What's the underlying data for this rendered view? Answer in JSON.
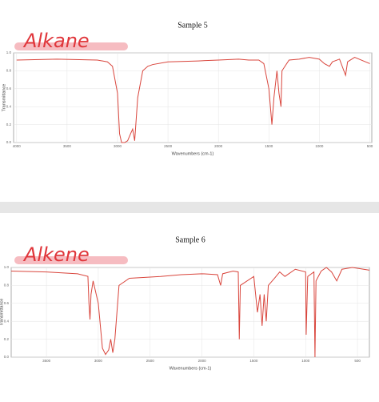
{
  "chart_data": [
    {
      "type": "line",
      "title": "Sample 5",
      "annotation": "Alkane",
      "x_label": "Wavenumbers (cm-1)",
      "y_label": "Transmittance",
      "xlim": [
        4030,
        480
      ],
      "xticks": [
        4000,
        3500,
        3000,
        2500,
        2000,
        1500,
        1000,
        500
      ],
      "ylim": [
        0,
        1
      ],
      "yticks": [
        {
          "value": 0,
          "label": "0.0"
        },
        0.2,
        0.4,
        0.6,
        0.8,
        {
          "value": 1,
          "label": "1.0"
        }
      ],
      "grid": true,
      "color": "#d9453c",
      "x": [
        4000,
        3600,
        3200,
        3100,
        3050,
        3000,
        2980,
        2960,
        2930,
        2900,
        2870,
        2850,
        2830,
        2800,
        2750,
        2700,
        2650,
        2500,
        2200,
        2000,
        1800,
        1700,
        1600,
        1550,
        1500,
        1470,
        1450,
        1420,
        1400,
        1380,
        1370,
        1300,
        1200,
        1100,
        1000,
        950,
        900,
        870,
        800,
        740,
        720,
        650,
        500
      ],
      "values": [
        0.92,
        0.93,
        0.92,
        0.9,
        0.85,
        0.55,
        0.1,
        0.0,
        0.0,
        0.02,
        0.1,
        0.15,
        0.02,
        0.5,
        0.8,
        0.85,
        0.87,
        0.9,
        0.91,
        0.92,
        0.93,
        0.92,
        0.92,
        0.88,
        0.6,
        0.2,
        0.5,
        0.8,
        0.55,
        0.4,
        0.8,
        0.92,
        0.93,
        0.95,
        0.93,
        0.88,
        0.85,
        0.9,
        0.93,
        0.75,
        0.9,
        0.95,
        0.88
      ]
    },
    {
      "type": "line",
      "title": "Sample 6",
      "annotation": "Alkene",
      "x_label": "Wavenumbers (cm-1)",
      "y_label": "Transmittance",
      "xlim": [
        3840,
        385
      ],
      "xticks": [
        3500,
        3000,
        2500,
        2000,
        1500,
        1000,
        500
      ],
      "ylim": [
        0,
        1
      ],
      "yticks": [
        {
          "value": 0,
          "label": "0.0"
        },
        0.2,
        0.4,
        0.6,
        0.8,
        {
          "value": 1,
          "label": "1.0"
        }
      ],
      "grid": true,
      "color": "#d9453c",
      "x": [
        3840,
        3500,
        3200,
        3100,
        3090,
        3080,
        3070,
        3050,
        3000,
        2960,
        2930,
        2900,
        2880,
        2860,
        2840,
        2800,
        2700,
        2400,
        2200,
        2000,
        1850,
        1820,
        1800,
        1700,
        1650,
        1640,
        1630,
        1500,
        1465,
        1440,
        1420,
        1400,
        1380,
        1360,
        1300,
        1250,
        1200,
        1100,
        1000,
        995,
        980,
        920,
        910,
        900,
        850,
        800,
        750,
        700,
        650,
        550,
        385
      ],
      "values": [
        0.96,
        0.95,
        0.93,
        0.9,
        0.6,
        0.42,
        0.7,
        0.85,
        0.6,
        0.1,
        0.03,
        0.08,
        0.2,
        0.05,
        0.2,
        0.8,
        0.88,
        0.9,
        0.92,
        0.93,
        0.92,
        0.8,
        0.93,
        0.96,
        0.95,
        0.2,
        0.8,
        0.9,
        0.5,
        0.7,
        0.35,
        0.7,
        0.4,
        0.8,
        0.88,
        0.95,
        0.9,
        0.98,
        0.95,
        0.25,
        0.9,
        0.95,
        0.0,
        0.85,
        0.96,
        1.0,
        0.95,
        0.85,
        0.98,
        1.0,
        0.97
      ]
    }
  ]
}
